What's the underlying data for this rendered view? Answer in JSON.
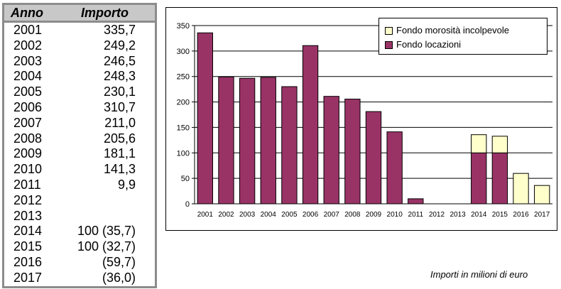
{
  "table": {
    "header_year": "Anno",
    "header_amount": "Importo",
    "rows": [
      {
        "year": "2001",
        "value": "335,7"
      },
      {
        "year": "2002",
        "value": "249,2"
      },
      {
        "year": "2003",
        "value": "246,5"
      },
      {
        "year": "2004",
        "value": "248,3"
      },
      {
        "year": "2005",
        "value": "230,1"
      },
      {
        "year": "2006",
        "value": "310,7"
      },
      {
        "year": "2007",
        "value": "211,0"
      },
      {
        "year": "2008",
        "value": "205,6"
      },
      {
        "year": "2009",
        "value": "181,1"
      },
      {
        "year": "2010",
        "value": "141,3"
      },
      {
        "year": "2011",
        "value": "9,9"
      },
      {
        "year": "2012",
        "value": ""
      },
      {
        "year": "2013",
        "value": ""
      },
      {
        "year": "2014",
        "value": "100 (35,7)"
      },
      {
        "year": "2015",
        "value": "100 (32,7)"
      },
      {
        "year": "2016",
        "value": "(59,7)"
      },
      {
        "year": "2017",
        "value": "(36,0)"
      }
    ]
  },
  "note": "Importi in milioni di euro",
  "colors": {
    "fondo_locazioni": "#993366",
    "fondo_morosita": "#ffffcc"
  },
  "chart_data": {
    "type": "bar",
    "stacked": true,
    "categories": [
      "2001",
      "2002",
      "2003",
      "2004",
      "2005",
      "2006",
      "2007",
      "2008",
      "2009",
      "2010",
      "2011",
      "2012",
      "2013",
      "2014",
      "2015",
      "2016",
      "2017"
    ],
    "series": [
      {
        "name": "Fondo locazioni",
        "values": [
          335.7,
          249.2,
          246.5,
          248.3,
          230.1,
          310.7,
          211.0,
          205.6,
          181.1,
          141.3,
          9.9,
          0,
          0,
          100,
          100,
          0,
          0
        ]
      },
      {
        "name": "Fondo morosità incolpevole",
        "values": [
          0,
          0,
          0,
          0,
          0,
          0,
          0,
          0,
          0,
          0,
          0,
          0,
          0,
          35.7,
          32.7,
          59.7,
          36.0
        ]
      }
    ],
    "yticks": [
      "0",
      "50",
      "100",
      "150",
      "200",
      "250",
      "300",
      "350"
    ],
    "ylim": [
      0,
      350
    ],
    "grid": true,
    "legend_position": "top-right",
    "legend": [
      "Fondo morosità incolpevole",
      "Fondo locazioni"
    ]
  }
}
